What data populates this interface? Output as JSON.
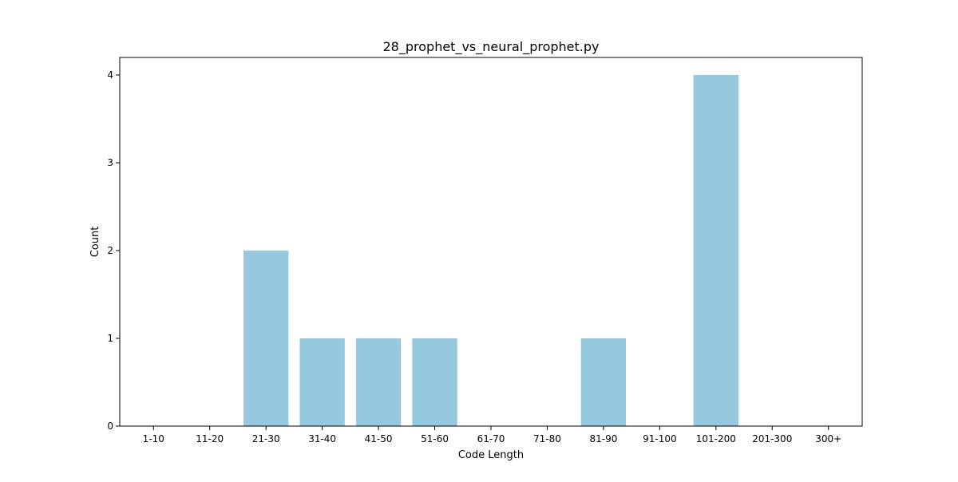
{
  "chart_data": {
    "type": "bar",
    "title": "28_prophet_vs_neural_prophet.py",
    "xlabel": "Code Length",
    "ylabel": "Count",
    "categories": [
      "1-10",
      "11-20",
      "21-30",
      "31-40",
      "41-50",
      "51-60",
      "61-70",
      "71-80",
      "81-90",
      "91-100",
      "101-200",
      "201-300",
      "300+"
    ],
    "values": [
      0,
      0,
      2,
      1,
      1,
      1,
      0,
      0,
      1,
      0,
      4,
      0,
      0
    ],
    "ylim": [
      0,
      4.2
    ],
    "yticks": [
      0,
      1,
      2,
      3,
      4
    ],
    "bar_color": "#96c9dd",
    "grid": false,
    "legend": "none"
  }
}
